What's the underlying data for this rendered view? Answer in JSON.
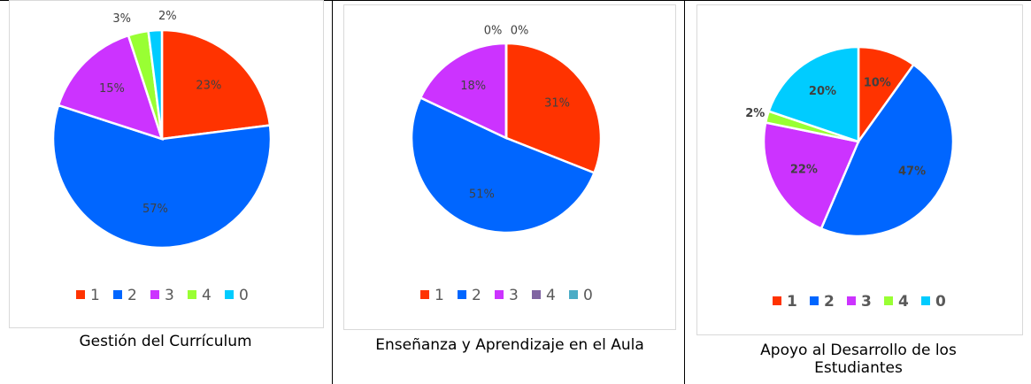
{
  "chart_data": [
    {
      "type": "pie",
      "caption": "Gestión del Currículum",
      "categories": [
        "1",
        "2",
        "3",
        "4",
        "0"
      ],
      "values": [
        23,
        57,
        15,
        3,
        2
      ],
      "value_labels": [
        "23%",
        "57%",
        "15%",
        "3%",
        "2%"
      ],
      "colors": [
        "#ff3300",
        "#0066ff",
        "#cc33ff",
        "#99ff33",
        "#00ccff"
      ],
      "font_weight": "normal"
    },
    {
      "type": "pie",
      "caption": "Enseñanza y Aprendizaje en el Aula",
      "categories": [
        "1",
        "2",
        "3",
        "4",
        "0"
      ],
      "values": [
        31,
        51,
        18,
        0,
        0
      ],
      "value_labels": [
        "31%",
        "51%",
        "18%",
        "0%",
        "0%"
      ],
      "colors": [
        "#ff3300",
        "#0066ff",
        "#cc33ff",
        "#8064a2",
        "#4bacc6"
      ],
      "font_weight": "normal"
    },
    {
      "type": "pie",
      "caption": "Apoyo al Desarrollo de los Estudiantes",
      "categories": [
        "1",
        "2",
        "3",
        "4",
        "0"
      ],
      "values": [
        10,
        47,
        22,
        2,
        20
      ],
      "value_labels": [
        "10%",
        "47%",
        "22%",
        "2%",
        "20%"
      ],
      "colors": [
        "#ff3300",
        "#0066ff",
        "#cc33ff",
        "#99ff33",
        "#00ccff"
      ],
      "font_weight": "bold"
    }
  ]
}
